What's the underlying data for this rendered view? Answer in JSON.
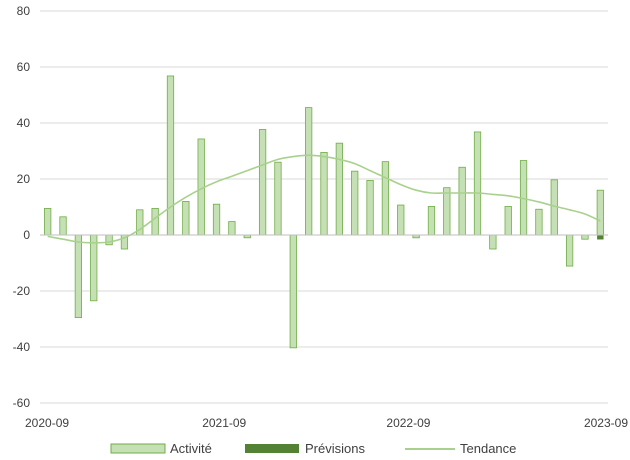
{
  "chart_data": {
    "type": "bar",
    "x_ticks": [
      "2020-09",
      "2021-09",
      "2022-09",
      "2023-09"
    ],
    "ylim": [
      -60,
      80
    ],
    "y_ticks": [
      -60,
      -40,
      -20,
      0,
      20,
      40,
      60,
      80
    ],
    "grid": true,
    "legend_position": "bottom",
    "colors": {
      "actual_fill": "#c5e0b4",
      "actual_stroke": "#70ad47",
      "forecast": "#548235",
      "trend": "#a9d18e",
      "grid": "#d9d9d9",
      "axis": "#bfbfbf"
    },
    "series": [
      {
        "name": "Activité",
        "kind": "bar",
        "values": [
          9.5,
          6.5,
          -29.5,
          -23.5,
          -3.5,
          -5,
          9,
          9.5,
          56.8,
          12,
          34.3,
          11,
          4.8,
          -1,
          37.7,
          26,
          -40.3,
          45.5,
          29.5,
          32.8,
          22.8,
          19.5,
          26.2,
          10.7,
          -1,
          10.2,
          16.9,
          24.2,
          36.8,
          -5,
          10.2,
          26.6,
          9.2,
          19.7,
          -11.1,
          -1.5,
          16
        ]
      },
      {
        "name": "Prévisions",
        "kind": "bar",
        "values": [
          null,
          null,
          null,
          null,
          null,
          null,
          null,
          null,
          null,
          null,
          null,
          null,
          null,
          null,
          null,
          null,
          null,
          null,
          null,
          null,
          null,
          null,
          null,
          null,
          null,
          null,
          null,
          null,
          null,
          null,
          null,
          null,
          null,
          null,
          null,
          null,
          -1.6
        ]
      },
      {
        "name": "Tendance",
        "kind": "line",
        "values": [
          -0.5,
          -1.5,
          -2.5,
          -2.8,
          -2.5,
          -1,
          2,
          6,
          10,
          13.5,
          16.5,
          19,
          21,
          23,
          25,
          27,
          28,
          28.5,
          28,
          27,
          25.5,
          23,
          20.5,
          18,
          16,
          15,
          15,
          15,
          15,
          14.5,
          14,
          13,
          11.8,
          10.3,
          9,
          7.5,
          5
        ]
      }
    ]
  }
}
